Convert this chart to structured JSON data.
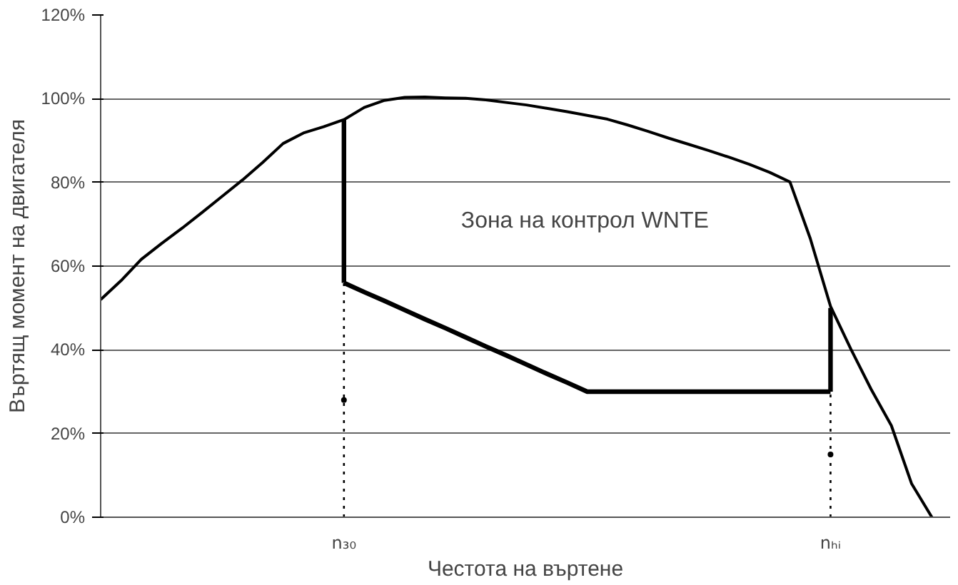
{
  "chart_data": {
    "type": "line",
    "xlabel": "Честота на въртене",
    "ylabel": "Въртящ момент на двигателя",
    "categories": [
      null,
      null,
      null,
      null,
      null,
      null,
      null,
      null,
      null,
      null,
      null,
      null,
      "n₃₀",
      null,
      null,
      null,
      null,
      null,
      null,
      null,
      null,
      null,
      null,
      null,
      null,
      null,
      null,
      null,
      null,
      null,
      null,
      null,
      null,
      null,
      null,
      null,
      "nₕᵢ",
      null,
      null,
      null,
      null,
      null
    ],
    "ylim": [
      0,
      120
    ],
    "yticks": [
      {
        "value": 0,
        "label": "0%"
      },
      {
        "value": 20,
        "label": "20%"
      },
      {
        "value": 40,
        "label": "40%"
      },
      {
        "value": 60,
        "label": "60%"
      },
      {
        "value": 80,
        "label": "80%"
      },
      {
        "value": 100,
        "label": "100%"
      },
      {
        "value": 120,
        "label": "120%"
      }
    ],
    "grid": "y",
    "marker": "none",
    "annotations": [
      "Зона на контрол WNTE"
    ],
    "series": [
      {
        "color": "#000000",
        "line_style": "solid",
        "values": [
          52,
          56.5,
          61.6,
          65.4,
          69,
          72.8,
          76.7,
          80.6,
          84.8,
          89.3,
          91.8,
          93.3,
          95,
          97.9,
          99.6,
          100.3,
          100.4,
          100.2,
          100.1,
          99.7,
          99.1,
          98.5,
          97.7,
          96.9,
          96,
          95.1,
          93.7,
          92.2,
          90.6,
          89.1,
          87.6,
          86,
          84.3,
          82.4,
          80.1,
          66.6,
          50.4,
          40.2,
          30.6,
          21.9,
          8,
          0
        ]
      },
      {
        "color": "#000000",
        "line_style": "solid",
        "values": [
          null,
          null,
          null,
          null,
          null,
          null,
          null,
          null,
          null,
          null,
          null,
          null,
          56,
          53.8,
          51.7,
          49.5,
          47.3,
          45.2,
          43,
          40.8,
          38.7,
          36.5,
          34.3,
          32.2,
          30,
          30,
          30,
          30,
          30,
          30,
          30,
          30,
          30,
          30,
          30,
          30,
          30,
          null,
          null,
          null,
          null,
          null
        ],
        "errors": [
          null,
          null,
          null,
          null,
          null,
          null,
          null,
          null,
          null,
          null,
          null,
          null,
          [
            56,
            95
          ],
          null,
          null,
          null,
          null,
          null,
          null,
          null,
          null,
          null,
          null,
          null,
          null,
          null,
          null,
          null,
          null,
          null,
          null,
          null,
          null,
          null,
          null,
          null,
          [
            30,
            50
          ],
          null,
          null,
          null,
          null,
          null
        ]
      },
      {
        "color": "#000000",
        "line_style": "dotted",
        "values": [
          null,
          null,
          null,
          null,
          null,
          null,
          null,
          null,
          null,
          null,
          null,
          null,
          28,
          null,
          null,
          null,
          null,
          null,
          null,
          null,
          null,
          null,
          null,
          null,
          null,
          null,
          null,
          null,
          null,
          null,
          null,
          null,
          null,
          null,
          null,
          null,
          15,
          null,
          null,
          null,
          null,
          null
        ],
        "errors": [
          null,
          null,
          null,
          null,
          null,
          null,
          null,
          null,
          null,
          null,
          null,
          null,
          [
            0,
            56
          ],
          null,
          null,
          null,
          null,
          null,
          null,
          null,
          null,
          null,
          null,
          null,
          null,
          null,
          null,
          null,
          null,
          null,
          null,
          null,
          null,
          null,
          null,
          null,
          [
            0,
            30
          ],
          null,
          null,
          null,
          null,
          null
        ]
      }
    ]
  }
}
